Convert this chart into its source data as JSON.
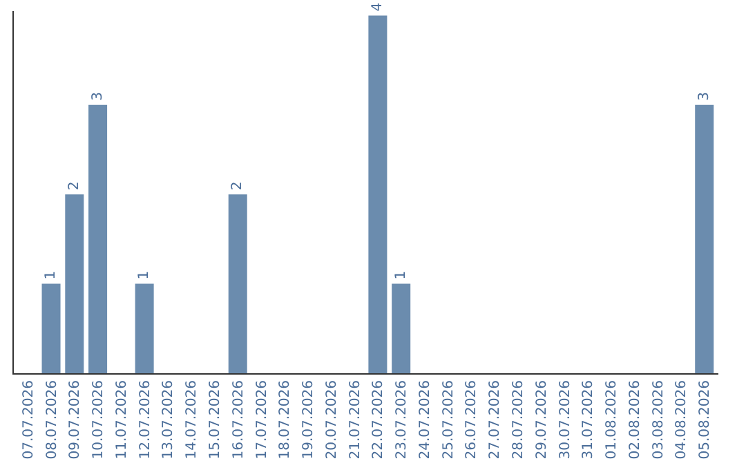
{
  "chart_data": {
    "type": "bar",
    "categories": [
      "07.07.2026",
      "08.07.2026",
      "09.07.2026",
      "10.07.2026",
      "11.07.2026",
      "12.07.2026",
      "13.07.2026",
      "14.07.2026",
      "15.07.2026",
      "16.07.2026",
      "17.07.2026",
      "18.07.2026",
      "19.07.2026",
      "20.07.2026",
      "21.07.2026",
      "22.07.2026",
      "23.07.2026",
      "24.07.2026",
      "25.07.2026",
      "26.07.2026",
      "27.07.2026",
      "28.07.2026",
      "29.07.2026",
      "30.07.2026",
      "31.07.2026",
      "01.08.2026",
      "02.08.2026",
      "03.08.2026",
      "04.08.2026",
      "05.08.2026"
    ],
    "values": [
      0,
      1,
      2,
      3,
      0,
      1,
      0,
      0,
      0,
      2,
      0,
      0,
      0,
      0,
      0,
      4,
      1,
      0,
      0,
      0,
      0,
      0,
      0,
      0,
      0,
      0,
      0,
      0,
      0,
      3
    ],
    "value_labels": [
      null,
      "1",
      "2",
      "3",
      null,
      "1",
      null,
      null,
      null,
      "2",
      null,
      null,
      null,
      null,
      null,
      "4",
      "1",
      null,
      null,
      null,
      null,
      null,
      null,
      null,
      null,
      null,
      null,
      null,
      null,
      "3"
    ],
    "color": "#6b8cae",
    "ylim": [
      0,
      4.05
    ],
    "tick_labels": "x",
    "grid": false,
    "legend": false
  }
}
